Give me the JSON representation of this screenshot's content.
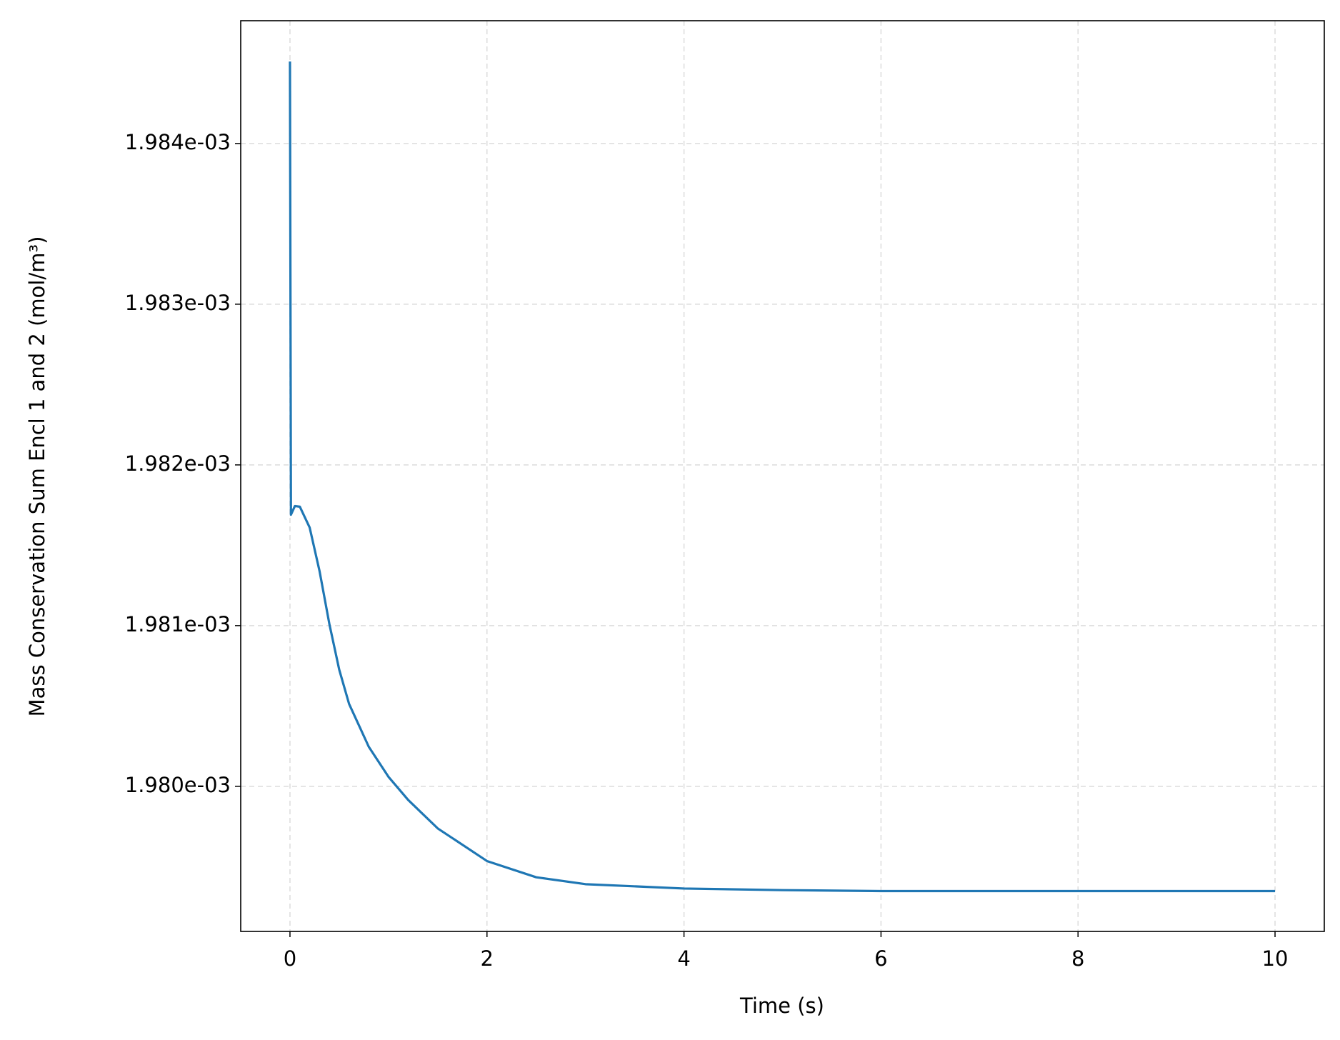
{
  "chart_data": {
    "type": "line",
    "xlabel": "Time (s)",
    "ylabel": "Mass Conservation Sum Encl 1 and 2 (mol/m³)",
    "x": [
      0,
      0.01,
      0.05,
      0.1,
      0.2,
      0.3,
      0.4,
      0.5,
      0.6,
      0.8,
      1.0,
      1.2,
      1.5,
      2.0,
      2.5,
      3.0,
      4.0,
      5.0,
      6.0,
      8.0,
      10.0
    ],
    "series": [
      {
        "color": "#1f77b4",
        "values": [
          0.00198451,
          0.00198169,
          0.001981744,
          0.00198174,
          0.00198161,
          0.00198134,
          0.00198101,
          0.001980726,
          0.001980513,
          0.001980246,
          0.001980059,
          0.001979915,
          0.001979738,
          0.001979535,
          0.001979434,
          0.001979391,
          0.001979364,
          0.001979354,
          0.001979348,
          0.001979348,
          0.001979348
        ]
      }
    ],
    "xlim": [
      -0.5,
      10.5
    ],
    "ylim": [
      0.001979097,
      0.001984764
    ],
    "xticks": [
      0,
      2,
      4,
      6,
      8,
      10
    ],
    "yticks": [
      {
        "value": 0.00198,
        "label": "1.980e-03"
      },
      {
        "value": 0.001981,
        "label": "1.981e-03"
      },
      {
        "value": 0.001982,
        "label": "1.982e-03"
      },
      {
        "value": 0.001983,
        "label": "1.983e-03"
      },
      {
        "value": 0.001984,
        "label": "1.984e-03"
      }
    ],
    "grid": true
  }
}
